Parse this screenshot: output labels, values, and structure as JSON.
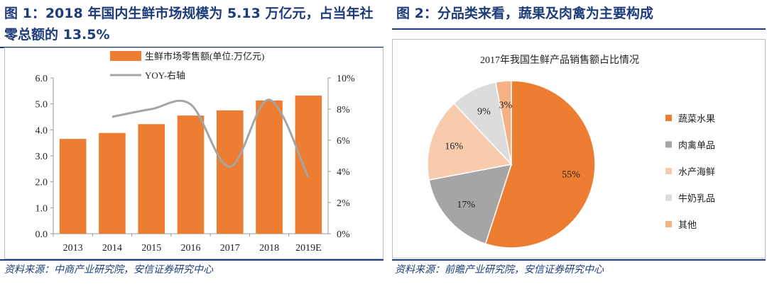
{
  "left": {
    "title": "图 1：2018 年国内生鲜市场规模为 5.13 万亿元，占当年社零总额的 13.5%",
    "source": "资料来源：中商产业研究院，安信证券研究中心",
    "chart_data": {
      "type": "bar",
      "categories": [
        "2013",
        "2014",
        "2015",
        "2016",
        "2017",
        "2018",
        "2019E"
      ],
      "series": [
        {
          "name": "生鲜市场零售额(单位:万亿元)",
          "type": "bar",
          "axis": "left",
          "color": "#ED7D31",
          "values": [
            3.65,
            3.88,
            4.22,
            4.55,
            4.75,
            5.13,
            5.32
          ]
        },
        {
          "name": "YOY-右轴",
          "type": "line",
          "axis": "right",
          "color": "#A5A5A5",
          "values": [
            null,
            7.5,
            8.0,
            8.3,
            4.3,
            8.6,
            3.6
          ]
        }
      ],
      "y_left": {
        "min": 0,
        "max": 6,
        "step": 1,
        "ticks": [
          "0.0",
          "1.0",
          "2.0",
          "3.0",
          "4.0",
          "5.0",
          "6.0"
        ]
      },
      "y_right": {
        "min": 0,
        "max": 10,
        "step": 2,
        "ticks": [
          "0%",
          "2%",
          "4%",
          "6%",
          "8%",
          "10%"
        ]
      },
      "legend_position": "top-left"
    }
  },
  "right": {
    "title": "图 2：分品类来看，蔬果及肉禽为主要构成",
    "source": "资料来源：前瞻产业研究院，安信证券研究中心",
    "chart_data": {
      "type": "pie",
      "title": "2017年我国生鲜产品销售额占比情况",
      "slices": [
        {
          "label": "蔬菜水果",
          "value": 55,
          "display": "55%",
          "color": "#ED7D31"
        },
        {
          "label": "肉禽单品",
          "value": 17,
          "display": "17%",
          "color": "#A5A5A5"
        },
        {
          "label": "水产海鲜",
          "value": 16,
          "display": "16%",
          "color": "#F8CBAD"
        },
        {
          "label": "牛奶乳品",
          "value": 9,
          "display": "9%",
          "color": "#DCDCDC"
        },
        {
          "label": "其他",
          "value": 3,
          "display": "3%",
          "color": "#F4B183"
        }
      ],
      "legend_position": "right"
    }
  }
}
